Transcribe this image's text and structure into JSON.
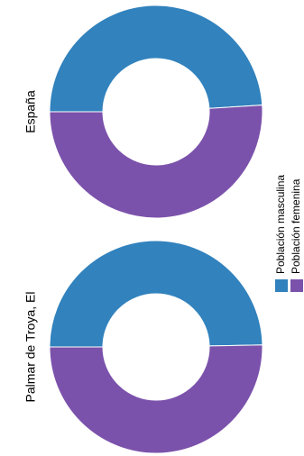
{
  "chart_data": {
    "type": "pie",
    "variant": "donut",
    "charts": [
      {
        "label": "España",
        "values": [
          49.0,
          51.0
        ]
      },
      {
        "label": "Palmar de Troya, El",
        "values": [
          49.7,
          50.3
        ]
      }
    ],
    "series": [
      {
        "name": "Población masculina",
        "color": "#3182bd"
      },
      {
        "name": "Población femenina",
        "color": "#7b52ab"
      }
    ],
    "legend": {
      "placement": "right",
      "items": [
        {
          "label": "Población masculina",
          "color": "#3182bd"
        },
        {
          "label": "Población femenina",
          "color": "#7b52ab"
        }
      ]
    }
  }
}
